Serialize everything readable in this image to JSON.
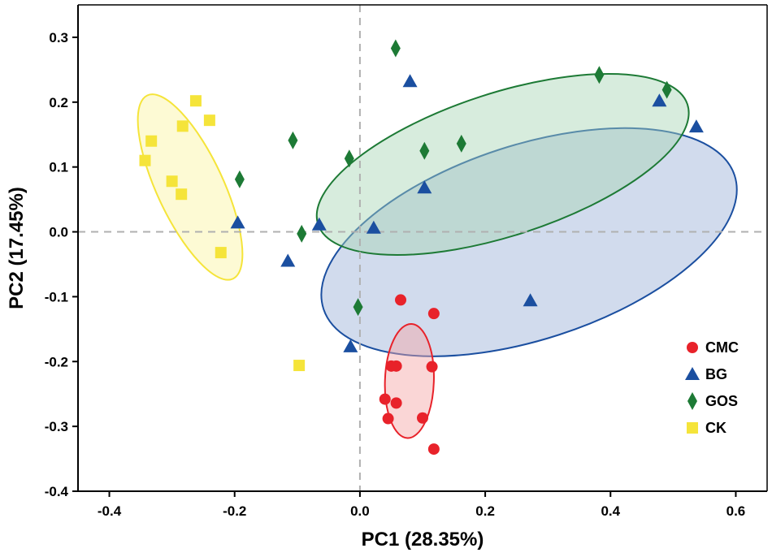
{
  "chart_data": {
    "type": "scatter",
    "xlabel": "PC1 (28.35%)",
    "ylabel": "PC2 (17.45%)",
    "xlim": [
      -0.45,
      0.65
    ],
    "ylim": [
      -0.4,
      0.35
    ],
    "xticks": [
      -0.4,
      -0.2,
      0.0,
      0.2,
      0.4,
      0.6
    ],
    "xtick_labels": [
      "-0.4",
      "-0.2",
      "0.0",
      "0.2",
      "0.4",
      "0.6"
    ],
    "yticks": [
      0.3,
      0.2,
      0.1,
      0.0,
      -0.1,
      -0.2,
      -0.3,
      -0.4
    ],
    "ytick_labels": [
      "0.3",
      "0.2",
      "0.1",
      "0.0",
      "-0.1",
      "-0.2",
      "-0.3",
      "-0.4"
    ],
    "reference_lines": {
      "x": 0.0,
      "y": 0.0
    },
    "legend_position": "bottom-right",
    "series": [
      {
        "name": "CMC",
        "marker": "circle",
        "color": "#e8222a",
        "points": [
          [
            0.065,
            -0.105
          ],
          [
            0.118,
            -0.126
          ],
          [
            0.05,
            -0.207
          ],
          [
            0.058,
            -0.207
          ],
          [
            0.115,
            -0.208
          ],
          [
            0.04,
            -0.258
          ],
          [
            0.058,
            -0.264
          ],
          [
            0.045,
            -0.288
          ],
          [
            0.1,
            -0.287
          ],
          [
            0.118,
            -0.335
          ]
        ],
        "ellipse": {
          "cx": 0.079,
          "cy": -0.23,
          "rx": 0.039,
          "ry": 0.088,
          "angle": 2
        }
      },
      {
        "name": "BG",
        "marker": "triangle",
        "color": "#1b4fa0",
        "points": [
          [
            0.08,
            0.232
          ],
          [
            0.478,
            0.202
          ],
          [
            0.537,
            0.162
          ],
          [
            0.103,
            0.068
          ],
          [
            -0.065,
            0.011
          ],
          [
            0.022,
            0.006
          ],
          [
            -0.115,
            -0.045
          ],
          [
            0.272,
            -0.106
          ],
          [
            -0.015,
            -0.177
          ],
          [
            -0.195,
            0.014
          ]
        ],
        "ellipse": {
          "cx": 0.27,
          "cy": -0.016,
          "rx": 0.345,
          "ry": 0.15,
          "angle": -18
        }
      },
      {
        "name": "GOS",
        "marker": "diamond",
        "color": "#1d7a35",
        "points": [
          [
            0.057,
            0.283
          ],
          [
            0.382,
            0.242
          ],
          [
            0.49,
            0.219
          ],
          [
            -0.107,
            0.141
          ],
          [
            0.103,
            0.125
          ],
          [
            0.162,
            0.136
          ],
          [
            -0.017,
            0.113
          ],
          [
            -0.192,
            0.081
          ],
          [
            -0.093,
            -0.003
          ],
          [
            -0.003,
            -0.116
          ]
        ],
        "ellipse": {
          "cx": 0.228,
          "cy": 0.104,
          "rx": 0.31,
          "ry": 0.11,
          "angle": -18
        }
      },
      {
        "name": "CK",
        "marker": "square",
        "color": "#f5e43a",
        "points": [
          [
            -0.262,
            0.202
          ],
          [
            -0.24,
            0.172
          ],
          [
            -0.283,
            0.163
          ],
          [
            -0.333,
            0.14
          ],
          [
            -0.343,
            0.11
          ],
          [
            -0.3,
            0.078
          ],
          [
            -0.285,
            0.058
          ],
          [
            -0.222,
            -0.032
          ],
          [
            -0.097,
            -0.206
          ]
        ],
        "ellipse": {
          "cx": -0.271,
          "cy": 0.069,
          "rx": 0.053,
          "ry": 0.156,
          "angle": -25
        }
      }
    ]
  },
  "colors": {
    "CMC_fill": "#f5a3a3",
    "BG_fill": "#9aafd8",
    "GOS_fill": "#a6d4b4",
    "CK_fill": "#fbf5a0"
  }
}
